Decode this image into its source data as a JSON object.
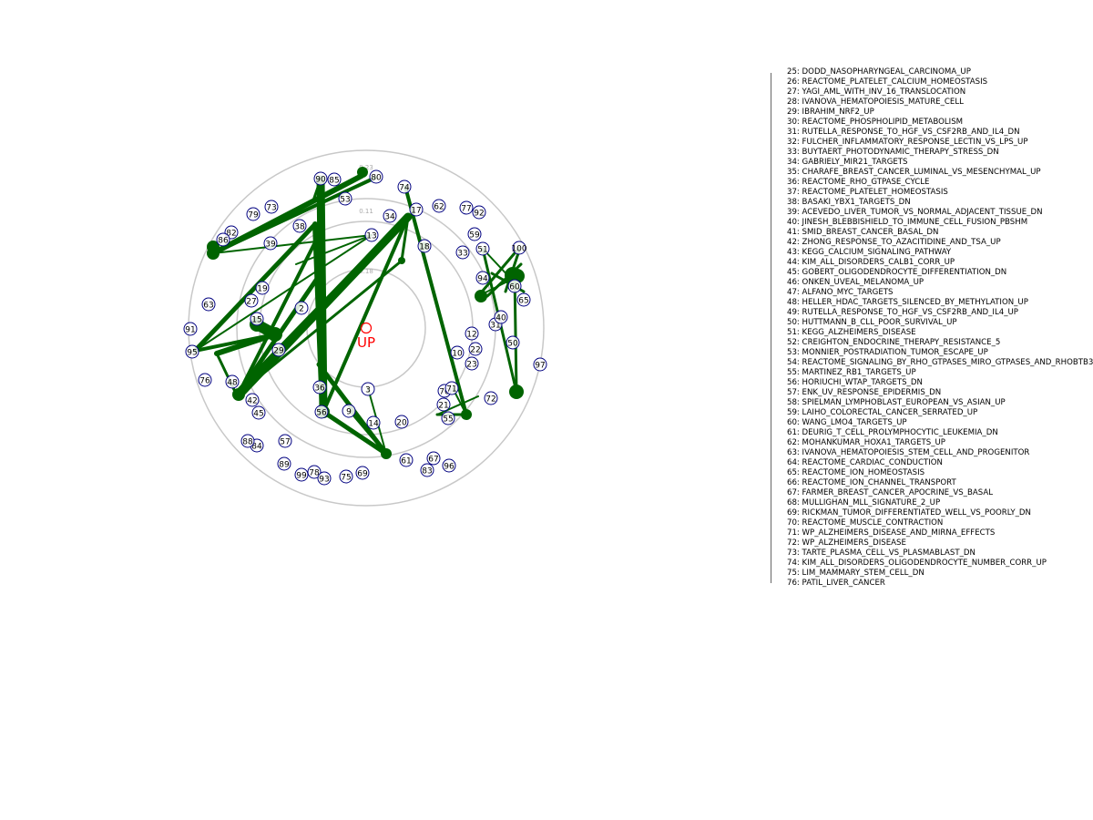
{
  "center_label": "UP",
  "ring_labels": [
    "0.11",
    "0.18",
    "0.23"
  ],
  "colors": {
    "edge": "#006400",
    "node_stroke": "#000080",
    "center": "#ff0000",
    "ring": "#c8c8c8"
  },
  "nodes": [
    "2",
    "3",
    "9",
    "10",
    "12",
    "13",
    "14",
    "15",
    "17",
    "18",
    "19",
    "20",
    "21",
    "22",
    "23",
    "27",
    "29",
    "31",
    "33",
    "34",
    "36",
    "38",
    "39",
    "40",
    "42",
    "45",
    "48",
    "50",
    "51",
    "53",
    "55",
    "56",
    "57",
    "59",
    "60",
    "61",
    "62",
    "63",
    "65",
    "67",
    "69",
    "70",
    "71",
    "72",
    "73",
    "74",
    "75",
    "76",
    "77",
    "78",
    "79",
    "80",
    "82",
    "83",
    "84",
    "85",
    "86",
    "88",
    "89",
    "90",
    "91",
    "92",
    "93",
    "94",
    "95",
    "96",
    "97",
    "99",
    "100"
  ],
  "legend_items": [
    "25: DODD_NASOPHARYNGEAL_CARCINOMA_UP",
    "26: REACTOME_PLATELET_CALCIUM_HOMEOSTASIS",
    "27: YAGI_AML_WITH_INV_16_TRANSLOCATION",
    "28: IVANOVA_HEMATOPOIESIS_MATURE_CELL",
    "29: IBRAHIM_NRF2_UP",
    "30: REACTOME_PHOSPHOLIPID_METABOLISM",
    "31: RUTELLA_RESPONSE_TO_HGF_VS_CSF2RB_AND_IL4_DN",
    "32: FULCHER_INFLAMMATORY_RESPONSE_LECTIN_VS_LPS_UP",
    "33: BUYTAERT_PHOTODYNAMIC_THERAPY_STRESS_DN",
    "34: GABRIELY_MIR21_TARGETS",
    "35: CHARAFE_BREAST_CANCER_LUMINAL_VS_MESENCHYMAL_UP",
    "36: REACTOME_RHO_GTPASE_CYCLE",
    "37: REACTOME_PLATELET_HOMEOSTASIS",
    "38: BASAKI_YBX1_TARGETS_DN",
    "39: ACEVEDO_LIVER_TUMOR_VS_NORMAL_ADJACENT_TISSUE_DN",
    "40: JINESH_BLEBBISHIELD_TO_IMMUNE_CELL_FUSION_PBSHM",
    "41: SMID_BREAST_CANCER_BASAL_DN",
    "42: ZHONG_RESPONSE_TO_AZACITIDINE_AND_TSA_UP",
    "43: KEGG_CALCIUM_SIGNALING_PATHWAY",
    "44: KIM_ALL_DISORDERS_CALB1_CORR_UP",
    "45: GOBERT_OLIGODENDROCYTE_DIFFERENTIATION_DN",
    "46: ONKEN_UVEAL_MELANOMA_UP",
    "47: ALFANO_MYC_TARGETS",
    "48: HELLER_HDAC_TARGETS_SILENCED_BY_METHYLATION_UP",
    "49: RUTELLA_RESPONSE_TO_HGF_VS_CSF2RB_AND_IL4_UP",
    "50: HUTTMANN_B_CLL_POOR_SURVIVAL_UP",
    "51: KEGG_ALZHEIMERS_DISEASE",
    "52: CREIGHTON_ENDOCRINE_THERAPY_RESISTANCE_5",
    "53: MONNIER_POSTRADIATION_TUMOR_ESCAPE_UP",
    "54: REACTOME_SIGNALING_BY_RHO_GTPASES_MIRO_GTPASES_AND_RHOBTB3",
    "55: MARTINEZ_RB1_TARGETS_UP",
    "56: HORIUCHI_WTAP_TARGETS_DN",
    "57: ENK_UV_RESPONSE_EPIDERMIS_DN",
    "58: SPIELMAN_LYMPHOBLAST_EUROPEAN_VS_ASIAN_UP",
    "59: LAIHO_COLORECTAL_CANCER_SERRATED_UP",
    "60: WANG_LMO4_TARGETS_UP",
    "61: DEURIG_T_CELL_PROLYMPHOCYTIC_LEUKEMIA_DN",
    "62: MOHANKUMAR_HOXA1_TARGETS_UP",
    "63: IVANOVA_HEMATOPOIESIS_STEM_CELL_AND_PROGENITOR",
    "64: REACTOME_CARDIAC_CONDUCTION",
    "65: REACTOME_ION_HOMEOSTASIS",
    "66: REACTOME_ION_CHANNEL_TRANSPORT",
    "67: FARMER_BREAST_CANCER_APOCRINE_VS_BASAL",
    "68: MULLIGHAN_MLL_SIGNATURE_2_UP",
    "69: RICKMAN_TUMOR_DIFFERENTIATED_WELL_VS_POORLY_DN",
    "70: REACTOME_MUSCLE_CONTRACTION",
    "71: WP_ALZHEIMERS_DISEASE_AND_MIRNA_EFFECTS",
    "72: WP_ALZHEIMERS_DISEASE",
    "73: TARTE_PLASMA_CELL_VS_PLASMABLAST_DN",
    "74: KIM_ALL_DISORDERS_OLIGODENDROCYTE_NUMBER_CORR_UP",
    "75: LIM_MAMMARY_STEM_CELL_DN",
    "76: PATIL_LIVER_CANCER"
  ]
}
